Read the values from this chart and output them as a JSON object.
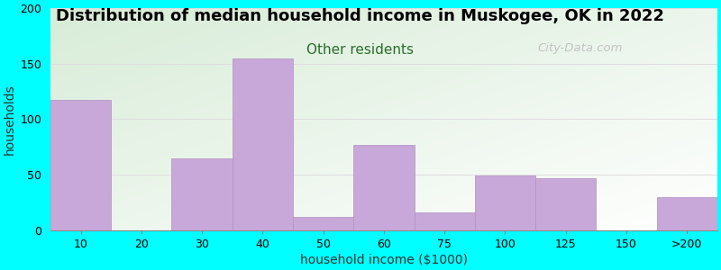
{
  "title": "Distribution of median household income in Muskogee, OK in 2022",
  "subtitle": "Other residents",
  "xlabel": "household income ($1000)",
  "ylabel": "households",
  "background_color": "#00FFFF",
  "plot_bg_top_left": "#d8ecd8",
  "plot_bg_bottom_right": "#ffffff",
  "bar_color": "#c8a8d8",
  "bar_edge_color": "#b090c0",
  "tick_labels": [
    "10",
    "20",
    "30",
    "40",
    "50",
    "60",
    "75",
    "100",
    "125",
    "150",
    ">200"
  ],
  "tick_positions": [
    0,
    1,
    2,
    3,
    4,
    5,
    6,
    7,
    8,
    9,
    10
  ],
  "bar_lefts": [
    0,
    2,
    3,
    4,
    5,
    6,
    7,
    8,
    9,
    10
  ],
  "bar_widths": [
    1,
    1,
    1,
    1,
    1,
    1,
    1,
    1,
    1,
    1
  ],
  "bar_heights": [
    117,
    65,
    155,
    12,
    77,
    16,
    49,
    47,
    0,
    30
  ],
  "ylim": [
    0,
    200
  ],
  "yticks": [
    0,
    50,
    100,
    150,
    200
  ],
  "title_fontsize": 13,
  "subtitle_fontsize": 11,
  "subtitle_color": "#2a6e2a",
  "axis_label_fontsize": 10,
  "watermark_text": "City-Data.com",
  "watermark_color": "#bbbbbb"
}
